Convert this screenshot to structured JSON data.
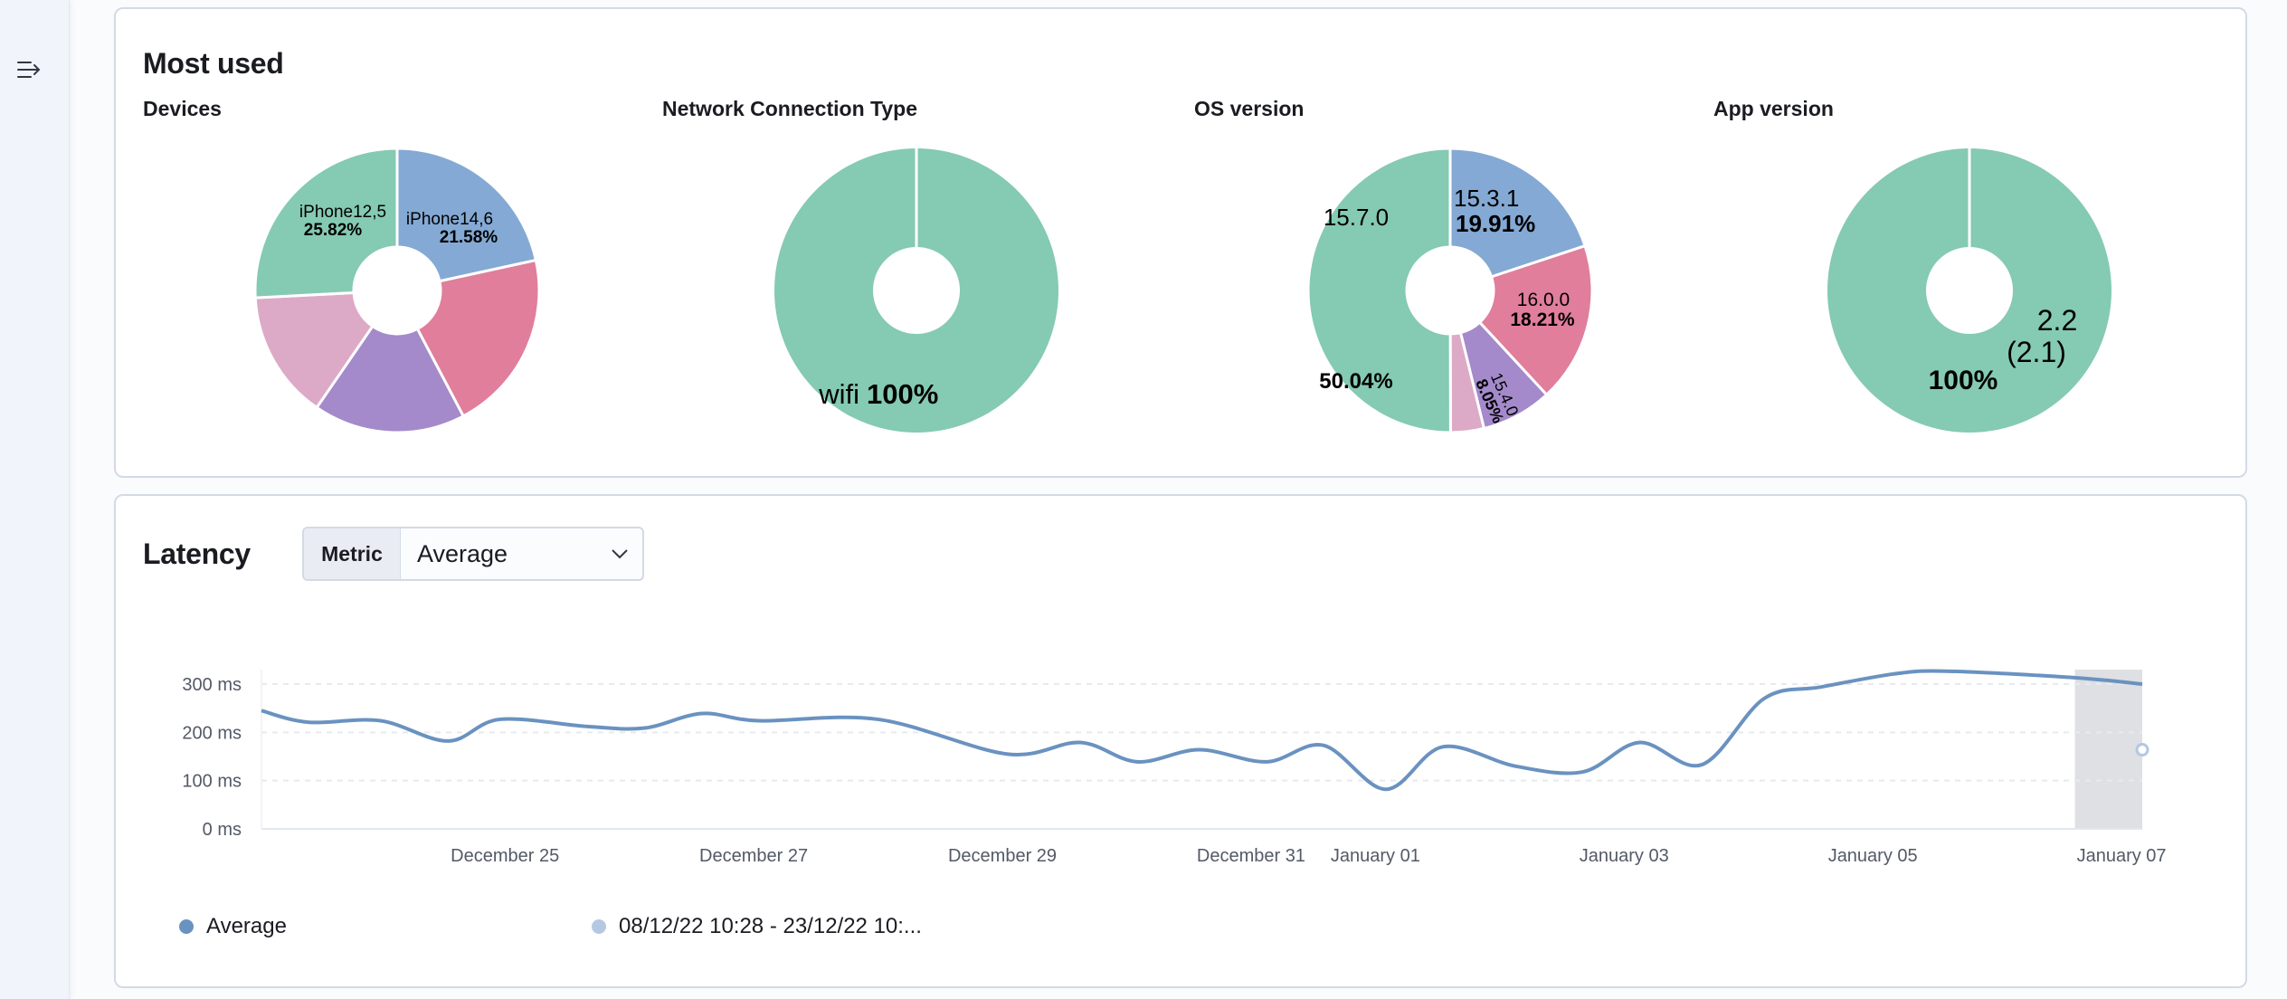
{
  "sidebar": {
    "toggle_icon": "menu-expand-icon"
  },
  "most_used": {
    "title": "Most used"
  },
  "latency": {
    "title": "Latency",
    "metric_select": {
      "prepend": "Metric",
      "value": "Average"
    }
  },
  "colors": {
    "green": "#85cab3",
    "blue": "#84a9d4",
    "pink": "#e07e9c",
    "purple": "#a48aca",
    "light_pink": "#dcaac6",
    "line": "#6a92c0",
    "previous": "#b4c8e1"
  },
  "chart_data": [
    {
      "type": "pie",
      "title": "Devices",
      "slices": [
        {
          "label": "iPhone14,6",
          "value": 21.58,
          "value_label": "21.58%",
          "color": "#84a9d4"
        },
        {
          "label": "",
          "value": 20.7,
          "color": "#e07e9c"
        },
        {
          "label": "",
          "value": 17.3,
          "color": "#a48aca"
        },
        {
          "label": "",
          "value": 14.6,
          "color": "#dcaac6"
        },
        {
          "label": "iPhone12,5",
          "value": 25.82,
          "value_label": "25.82%",
          "color": "#85cab3"
        }
      ]
    },
    {
      "type": "pie",
      "title": "Network Connection Type",
      "slices": [
        {
          "label": "wifi",
          "value": 100,
          "value_label": "100%",
          "color": "#85cab3"
        }
      ]
    },
    {
      "type": "pie",
      "title": "OS version",
      "slices": [
        {
          "label": "15.3.1",
          "value": 19.91,
          "value_label": "19.91%",
          "color": "#84a9d4"
        },
        {
          "label": "16.0.0",
          "value": 18.21,
          "value_label": "18.21%",
          "color": "#e07e9c"
        },
        {
          "label": "15.4.0",
          "value": 8.05,
          "value_label": "8.05%",
          "color": "#a48aca"
        },
        {
          "label": "",
          "value": 3.79,
          "color": "#dcaac6"
        },
        {
          "label": "15.7.0",
          "value": 50.04,
          "value_label": "50.04%",
          "color": "#85cab3"
        }
      ]
    },
    {
      "type": "pie",
      "title": "App version",
      "slices": [
        {
          "label": "2.2",
          "sublabel": "(2.1)",
          "value": 100,
          "value_label": "100%",
          "color": "#85cab3"
        }
      ]
    },
    {
      "type": "line",
      "xlim": [
        "2022-12-23T01:00",
        "2023-01-07T04:00"
      ],
      "ylim": [
        0,
        330
      ],
      "yticks": [
        {
          "value": 0,
          "label": "0 ms"
        },
        {
          "value": 100,
          "label": "100 ms"
        },
        {
          "value": 200,
          "label": "200 ms"
        },
        {
          "value": 300,
          "label": "300 ms"
        }
      ],
      "xticks": [
        {
          "date": "2022-12-25T00:00",
          "label": "December 25"
        },
        {
          "date": "2022-12-27T00:00",
          "label": "December 27"
        },
        {
          "date": "2022-12-29T00:00",
          "label": "December 29"
        },
        {
          "date": "2022-12-31T00:00",
          "label": "December 31"
        },
        {
          "date": "2023-01-01T00:00",
          "label": "January 01"
        },
        {
          "date": "2023-01-03T00:00",
          "label": "January 03"
        },
        {
          "date": "2023-01-05T00:00",
          "label": "January 05"
        },
        {
          "date": "2023-01-07T00:00",
          "label": "January 07"
        }
      ],
      "grid": true,
      "highlight_range": [
        "2023-01-06T15:00",
        "2023-01-07T04:00"
      ],
      "legend_position": "bottom-left",
      "series": [
        {
          "name": "Average",
          "color": "#6a92c0",
          "points": [
            [
              "2022-12-23T01:00",
              245
            ],
            [
              "2022-12-23T10:00",
              221
            ],
            [
              "2022-12-24T00:00",
              224
            ],
            [
              "2022-12-24T13:00",
              182
            ],
            [
              "2022-12-24T23:00",
              227
            ],
            [
              "2022-12-25T16:00",
              212
            ],
            [
              "2022-12-26T03:00",
              209
            ],
            [
              "2022-12-26T14:00",
              239
            ],
            [
              "2022-12-27T01:00",
              224
            ],
            [
              "2022-12-28T00:00",
              227
            ],
            [
              "2022-12-29T01:00",
              155
            ],
            [
              "2022-12-29T15:00",
              179
            ],
            [
              "2022-12-30T02:00",
              139
            ],
            [
              "2022-12-30T14:00",
              164
            ],
            [
              "2022-12-31T03:00",
              139
            ],
            [
              "2022-12-31T14:00",
              173
            ],
            [
              "2023-01-01T02:00",
              82
            ],
            [
              "2023-01-01T13:00",
              170
            ],
            [
              "2023-01-02T03:00",
              130
            ],
            [
              "2023-01-02T16:00",
              118
            ],
            [
              "2023-01-03T03:00",
              179
            ],
            [
              "2023-01-03T15:00",
              133
            ],
            [
              "2023-01-04T03:00",
              270
            ],
            [
              "2023-01-04T14:00",
              294
            ],
            [
              "2023-01-05T04:00",
              321
            ],
            [
              "2023-01-05T13:00",
              327
            ],
            [
              "2023-01-06T08:00",
              318
            ],
            [
              "2023-01-06T20:00",
              309
            ],
            [
              "2023-01-07T04:00",
              300
            ]
          ]
        },
        {
          "name": "08/12/22 10:28 - 23/12/22 10:...",
          "color": "#b4c8e1",
          "points": [
            [
              "2023-01-07T04:00",
              164
            ]
          ]
        }
      ]
    }
  ]
}
